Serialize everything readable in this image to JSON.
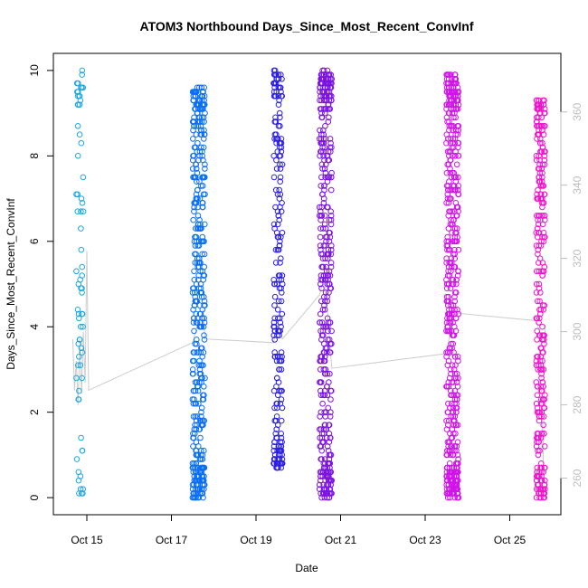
{
  "chart_data": {
    "type": "scatter",
    "title": "ATOM3 Northbound Days_Since_Most_Recent_ConvInf",
    "xlabel": "Date",
    "ylabel": "Days_Since_Most_Recent_ConvInf",
    "xlim": [
      "2016-10-14 05:00",
      "2016-10-26 05:00"
    ],
    "ylim": [
      -0.4,
      10.4
    ],
    "y2lim": [
      250,
      376
    ],
    "x_ticks": [
      {
        "date": "2016-10-15",
        "label": "Oct 15"
      },
      {
        "date": "2016-10-17",
        "label": "Oct 17"
      },
      {
        "date": "2016-10-19",
        "label": "Oct 19"
      },
      {
        "date": "2016-10-21",
        "label": "Oct 21"
      },
      {
        "date": "2016-10-23",
        "label": "Oct 23"
      },
      {
        "date": "2016-10-25",
        "label": "Oct 25"
      }
    ],
    "y_ticks": [
      0,
      2,
      4,
      6,
      8,
      10
    ],
    "y2_ticks": [
      260,
      280,
      300,
      320,
      340,
      360
    ],
    "point_marker": "open-circle",
    "series": [
      {
        "start": "2016-10-14 18:00",
        "end": "2016-10-14 22:00",
        "color": "#1ea7e1",
        "y_min": 0,
        "y_max": 10,
        "count": 70
      },
      {
        "start": "2016-10-17 12:00",
        "end": "2016-10-17 19:00",
        "color": "#0a6ff5",
        "y_min": 0,
        "y_max": 9.6,
        "count": 420
      },
      {
        "start": "2016-10-19 10:00",
        "end": "2016-10-19 15:00",
        "color": "#2b1fe6",
        "y_min": 0.7,
        "y_max": 10,
        "count": 220
      },
      {
        "start": "2016-10-20 12:00",
        "end": "2016-10-20 19:00",
        "color": "#7d14e0",
        "y_min": 0,
        "y_max": 10,
        "count": 430
      },
      {
        "start": "2016-10-23 12:00",
        "end": "2016-10-23 19:00",
        "color": "#d014e8",
        "y_min": 0,
        "y_max": 9.9,
        "count": 520
      },
      {
        "start": "2016-10-25 15:00",
        "end": "2016-10-25 20:00",
        "color": "#ef14cc",
        "y_min": 0,
        "y_max": 9.3,
        "count": 300
      }
    ],
    "secondary_line": {
      "axis": "right",
      "color": "#cccccc",
      "points": [
        [
          "2016-10-14 16:00",
          298
        ],
        [
          "2016-10-14 17:00",
          284
        ],
        [
          "2016-10-14 18:00",
          292
        ],
        [
          "2016-10-14 19:00",
          280
        ],
        [
          "2016-10-14 20:00",
          298
        ],
        [
          "2016-10-14 21:00",
          283
        ],
        [
          "2016-10-14 22:00",
          300
        ],
        [
          "2016-10-14 23:00",
          286
        ],
        [
          "2016-10-15 00:00",
          322
        ],
        [
          "2016-10-15 01:00",
          284
        ],
        [
          "2016-10-17 12:00",
          297
        ],
        [
          "2016-10-17 15:00",
          302
        ],
        [
          "2016-10-17 18:00",
          306
        ],
        [
          "2016-10-17 19:00",
          298
        ],
        [
          "2016-10-19 10:00",
          297
        ],
        [
          "2016-10-19 12:00",
          303
        ],
        [
          "2016-10-19 15:00",
          298
        ],
        [
          "2016-10-20 12:00",
          310
        ],
        [
          "2016-10-20 15:00",
          315
        ],
        [
          "2016-10-20 19:00",
          290
        ],
        [
          "2016-10-23 12:00",
          294
        ],
        [
          "2016-10-23 15:00",
          302
        ],
        [
          "2016-10-23 19:00",
          305
        ],
        [
          "2016-10-25 15:00",
          303
        ],
        [
          "2016-10-25 17:00",
          300
        ],
        [
          "2016-10-25 19:00",
          264
        ],
        [
          "2016-10-25 20:00",
          302
        ]
      ]
    }
  }
}
